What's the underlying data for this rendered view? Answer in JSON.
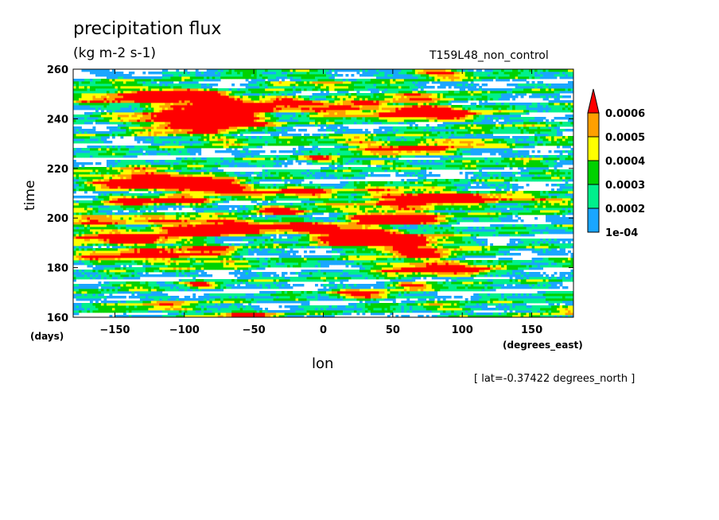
{
  "chart_data": {
    "type": "heatmap",
    "title": "precipitation flux",
    "units": "(kg m-2 s-1)",
    "run_label": "T159L48_non_control",
    "xlabel": "lon",
    "x_units": "(degrees_east)",
    "ylabel": "time",
    "y_units": "(days)",
    "footnote": "[ lat=-0.37422 degrees_north ]",
    "xlim": [
      -180,
      180
    ],
    "ylim": [
      160,
      260
    ],
    "x_ticks": [
      -150,
      -100,
      -50,
      0,
      50,
      100,
      150
    ],
    "x_tick_labels": [
      "−150",
      "−100",
      "−50",
      "0",
      "50",
      "100",
      "150"
    ],
    "y_ticks": [
      160,
      180,
      200,
      220,
      240,
      260
    ],
    "y_tick_labels": [
      "160",
      "180",
      "200",
      "220",
      "240",
      "260"
    ],
    "color_levels": [
      0.0001,
      0.0002,
      0.0003,
      0.0004,
      0.0005,
      0.0006
    ],
    "colorbar_labels": [
      "1e-04",
      "0.0002",
      "0.0003",
      "0.0004",
      "0.0005",
      "0.0006"
    ],
    "colors": [
      "#ffffff",
      "#1aa6ff",
      "#00f08c",
      "#00d200",
      "#ffff00",
      "#ffa000",
      "#ff0000"
    ],
    "colorbar_extend": "max"
  }
}
